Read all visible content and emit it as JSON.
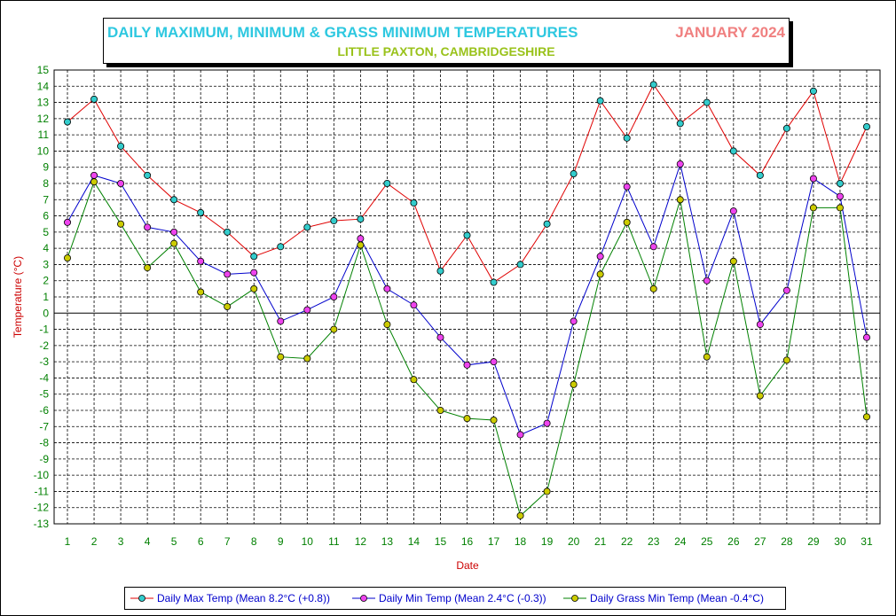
{
  "chart_data": {
    "type": "line",
    "title": "DAILY MAXIMUM, MINIMUM & GRASS MINIMUM TEMPERATURES",
    "period": "JANUARY 2024",
    "subtitle": "LITTLE PAXTON, CAMBRIDGESHIRE",
    "xlabel": "Date",
    "ylabel": "Temperature (°C)",
    "ylim": [
      -13,
      15
    ],
    "grid": true,
    "legend_position": "bottom",
    "x": [
      1,
      2,
      3,
      4,
      5,
      6,
      7,
      8,
      9,
      10,
      11,
      12,
      13,
      14,
      15,
      16,
      17,
      18,
      19,
      20,
      21,
      22,
      23,
      24,
      25,
      26,
      27,
      28,
      29,
      30,
      31
    ],
    "series": [
      {
        "name": "Daily Max Temp (Mean 8.2°C (+0.8))",
        "line_color": "#e00000",
        "marker_color": "#33cccc",
        "values": [
          11.8,
          13.2,
          10.3,
          8.5,
          7.0,
          6.2,
          5.0,
          3.5,
          4.1,
          5.3,
          5.7,
          5.8,
          8.0,
          6.8,
          2.6,
          4.8,
          1.9,
          3.0,
          5.5,
          8.6,
          13.1,
          10.8,
          14.1,
          11.7,
          13.0,
          10.0,
          8.5,
          11.4,
          13.7,
          8.0,
          11.5
        ]
      },
      {
        "name": "Daily Min Temp (Mean 2.4°C (-0.3))",
        "line_color": "#0000cc",
        "marker_color": "#ee44ee",
        "values": [
          5.6,
          8.5,
          8.0,
          5.3,
          5.0,
          3.2,
          2.4,
          2.5,
          -0.5,
          0.2,
          1.0,
          4.6,
          1.5,
          0.5,
          -1.5,
          -3.2,
          -3.0,
          -7.5,
          -6.8,
          -0.5,
          3.5,
          7.8,
          4.1,
          9.2,
          2.0,
          6.3,
          -0.7,
          1.4,
          8.3,
          7.2,
          -1.5
        ]
      },
      {
        "name": "Daily Grass Min Temp (Mean -0.4°C)",
        "line_color": "#008000",
        "marker_color": "#cccc00",
        "values": [
          3.4,
          8.1,
          5.5,
          2.8,
          4.3,
          1.3,
          0.4,
          1.5,
          -2.7,
          -2.8,
          -1.0,
          4.2,
          -0.7,
          -4.1,
          -6.0,
          -6.5,
          -6.6,
          -12.5,
          -11.0,
          -4.4,
          2.4,
          5.6,
          1.5,
          7.0,
          -2.7,
          3.2,
          -5.1,
          -2.9,
          6.5,
          6.5,
          -6.4
        ]
      }
    ]
  }
}
